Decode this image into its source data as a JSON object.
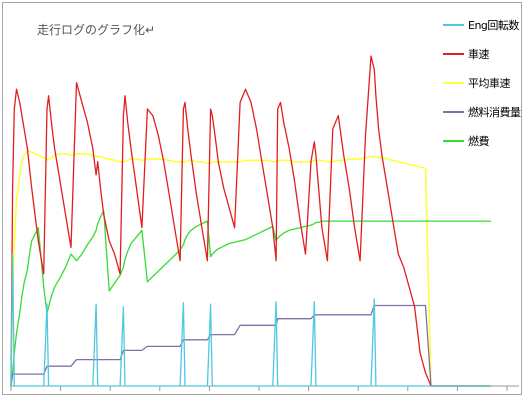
{
  "chart_data": {
    "type": "line",
    "title": "走行ログのグラフ化↵",
    "xlabel": "",
    "ylabel": "",
    "grid": false,
    "legend_position": "right",
    "x": [
      0,
      0.3,
      0.6,
      1,
      1.6,
      2,
      2.4,
      3,
      3.4,
      3.8,
      4.4,
      5,
      6,
      6.6,
      6.9,
      7.4,
      8,
      9,
      10,
      11,
      12,
      13,
      14,
      15,
      15.6,
      15.9,
      16.4,
      17,
      18,
      19,
      20,
      20.6,
      20.9,
      21.4,
      22,
      23,
      24,
      25,
      26,
      27,
      28,
      29,
      30,
      31,
      31.6,
      31.9,
      32.4,
      33,
      34,
      35,
      36,
      36.6,
      36.9,
      37.4,
      38,
      39,
      40,
      41,
      42,
      43,
      44,
      45,
      46,
      47,
      48,
      48.6,
      48.9,
      49.4,
      50,
      51,
      52,
      53,
      54,
      55,
      55.6,
      55.9,
      56.4,
      57,
      58,
      59,
      60,
      61,
      62,
      63,
      64,
      65,
      66,
      66.6,
      66.9,
      67.4,
      68,
      69,
      70,
      71,
      72,
      73,
      74,
      75,
      76,
      77,
      78,
      79,
      80,
      81,
      82,
      83,
      84,
      85,
      86,
      87,
      88
    ],
    "series": [
      {
        "name": "Eng回転数",
        "color": "#4ec9e0",
        "values": [
          0,
          100,
          0,
          0,
          0,
          0,
          0,
          0,
          0,
          0,
          0,
          0,
          0,
          62,
          0,
          0,
          0,
          0,
          0,
          0,
          0,
          0,
          0,
          0,
          62,
          0,
          0,
          0,
          0,
          0,
          0,
          60,
          0,
          0,
          0,
          0,
          0,
          0,
          0,
          0,
          0,
          0,
          0,
          0,
          63,
          0,
          0,
          0,
          0,
          0,
          0,
          62,
          0,
          0,
          0,
          0,
          0,
          0,
          0,
          0,
          0,
          0,
          0,
          0,
          0,
          64,
          0,
          0,
          0,
          0,
          0,
          0,
          0,
          0,
          64,
          0,
          0,
          0,
          0,
          0,
          0,
          0,
          0,
          0,
          0,
          0,
          0,
          66,
          0,
          0,
          0,
          0,
          0,
          0,
          0,
          0,
          0,
          0,
          0,
          0,
          0,
          0,
          0,
          0,
          0,
          0,
          0,
          0,
          0,
          0,
          0
        ]
      },
      {
        "name": "車速",
        "color": "#e02020",
        "values": [
          0,
          150,
          210,
          225,
          215,
          205,
          195,
          180,
          165,
          150,
          130,
          110,
          85,
          210,
          220,
          200,
          180,
          155,
          130,
          105,
          230,
          215,
          200,
          180,
          160,
          170,
          150,
          130,
          110,
          100,
          85,
          205,
          220,
          200,
          180,
          150,
          120,
          210,
          205,
          190,
          170,
          145,
          120,
          95,
          210,
          215,
          195,
          175,
          145,
          120,
          95,
          210,
          205,
          190,
          170,
          150,
          135,
          120,
          215,
          225,
          215,
          195,
          170,
          145,
          120,
          95,
          210,
          215,
          200,
          180,
          155,
          125,
          100,
          170,
          185,
          175,
          150,
          120,
          95,
          195,
          205,
          175,
          150,
          120,
          95,
          190,
          250,
          240,
          220,
          195,
          175,
          150,
          125,
          100,
          90,
          75,
          60,
          25,
          10,
          0,
          0,
          0,
          0,
          0,
          0,
          0,
          0,
          0,
          0,
          0,
          0
        ]
      },
      {
        "name": "平均車速",
        "color": "#ffff33",
        "values": [
          0,
          60,
          110,
          140,
          160,
          170,
          175,
          178,
          178,
          177,
          176,
          175,
          173,
          171,
          172,
          173,
          175,
          176,
          176,
          175,
          176,
          176,
          176,
          175,
          174,
          174,
          174,
          173,
          172,
          171,
          170,
          170,
          170,
          171,
          172,
          172,
          171,
          172,
          172,
          172,
          172,
          171,
          170,
          170,
          170,
          170,
          171,
          171,
          170,
          170,
          169,
          169,
          170,
          170,
          170,
          170,
          170,
          170,
          170,
          171,
          171,
          171,
          171,
          171,
          170,
          170,
          171,
          171,
          171,
          171,
          170,
          170,
          170,
          170,
          171,
          171,
          171,
          171,
          170,
          170,
          171,
          171,
          172,
          172,
          172,
          173,
          174,
          174,
          174,
          173,
          173,
          172,
          171,
          170,
          169,
          168,
          167,
          166,
          165,
          0,
          0,
          0,
          0,
          0,
          0,
          0,
          0,
          0,
          0,
          0,
          0
        ]
      },
      {
        "name": "燃料消費量",
        "color": "#8070a8",
        "values": [
          0,
          9,
          9,
          9,
          9,
          9,
          9,
          9,
          9,
          9,
          9,
          9,
          9,
          15,
          15,
          15,
          15,
          15,
          15,
          15,
          20,
          20,
          20,
          20,
          20,
          20,
          20,
          20,
          20,
          20,
          20,
          27,
          27,
          27,
          27,
          27,
          27,
          30,
          30,
          30,
          30,
          30,
          30,
          30,
          35,
          35,
          35,
          35,
          35,
          35,
          35,
          39,
          39,
          39,
          39,
          39,
          39,
          39,
          46,
          46,
          46,
          46,
          46,
          46,
          46,
          46,
          51,
          51,
          51,
          51,
          51,
          51,
          51,
          51,
          54,
          54,
          54,
          54,
          54,
          54,
          54,
          54,
          54,
          54,
          54,
          54,
          54,
          61,
          61,
          61,
          61,
          61,
          61,
          61,
          61,
          61,
          61,
          61,
          61,
          0,
          0,
          0,
          0,
          0,
          0,
          0,
          0,
          0,
          0,
          0,
          0
        ]
      },
      {
        "name": "燃費",
        "color": "#33dd33",
        "values": [
          0,
          10,
          25,
          40,
          55,
          68,
          78,
          88,
          100,
          110,
          115,
          120,
          75,
          55,
          60,
          68,
          75,
          82,
          90,
          100,
          95,
          100,
          107,
          113,
          118,
          123,
          128,
          133,
          72,
          78,
          84,
          90,
          96,
          102,
          108,
          113,
          118,
          79,
          83,
          87,
          91,
          95,
          99,
          103,
          107,
          111,
          115,
          118,
          121,
          123,
          125,
          98,
          100,
          102,
          104,
          106,
          108,
          109,
          110,
          111,
          113,
          115,
          117,
          119,
          121,
          110,
          112,
          114,
          116,
          118,
          119,
          120,
          121,
          122,
          123,
          124,
          124,
          125,
          125,
          125,
          125,
          125,
          125,
          125,
          125,
          125,
          125,
          125,
          125,
          125,
          125,
          125,
          125,
          125,
          125,
          125,
          125,
          125,
          125,
          125,
          125,
          125,
          125,
          125,
          125,
          125,
          125,
          125,
          125,
          125,
          125
        ]
      }
    ]
  }
}
